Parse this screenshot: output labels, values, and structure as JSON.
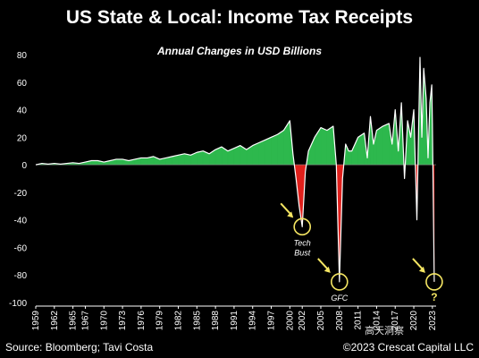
{
  "title": "US State & Local: Income Tax Receipts",
  "subtitle": "Annual Changes in USD Billions",
  "footer": {
    "source": "Source: Bloomberg; Tavi Costa",
    "copyright": "©2023 Crescat Capital LLC",
    "watermark": "高天洞察"
  },
  "colors": {
    "positive_fill": "#2db84d",
    "negative_fill": "#e0201c",
    "line": "#ffffff",
    "circle": "#f5e663",
    "arrow": "#f5e663"
  },
  "chart_data": {
    "type": "area",
    "title": "US State & Local: Income Tax Receipts",
    "subtitle": "Annual Changes in USD Billions",
    "xlabel": "",
    "ylabel": "",
    "ylim": [
      -100,
      80
    ],
    "xlim": [
      1959,
      2023.6
    ],
    "grid": false,
    "yticks": [
      80,
      60,
      40,
      20,
      0,
      -20,
      -40,
      -60,
      -80,
      -100
    ],
    "xticks": [
      "1959",
      "1962",
      "1965",
      "1967",
      "1970",
      "1973",
      "1976",
      "1979",
      "1982",
      "1985",
      "1988",
      "1991",
      "1994",
      "1997",
      "2000",
      "2002",
      "2005",
      "2008",
      "2011",
      "2014",
      "2017",
      "2020",
      "2023"
    ],
    "series": [
      {
        "x": [
          1959,
          1960,
          1961,
          1962,
          1963,
          1964,
          1965,
          1966,
          1967,
          1968,
          1969,
          1970,
          1971,
          1972,
          1973,
          1974,
          1975,
          1976,
          1977,
          1978,
          1979,
          1980,
          1981,
          1982,
          1983,
          1984,
          1985,
          1986,
          1987,
          1988,
          1989,
          1990,
          1991,
          1992,
          1993,
          1994,
          1995,
          1996,
          1997,
          1998,
          1999,
          2000,
          2000.5,
          2001,
          2001.5,
          2002,
          2002.5,
          2003,
          2004,
          2005,
          2006,
          2007,
          2007.5,
          2008,
          2008.5,
          2009,
          2009.5,
          2010,
          2011,
          2012,
          2012.5,
          2013,
          2013.5,
          2014,
          2015,
          2016,
          2016.5,
          2017,
          2017.5,
          2018,
          2018.5,
          2019,
          2019.5,
          2020,
          2020.5,
          2021,
          2021.3,
          2021.6,
          2022,
          2022.3,
          2022.6,
          2022.9,
          2023,
          2023.3
        ],
        "values": [
          0,
          1,
          0.5,
          1,
          0.5,
          1,
          1.5,
          1,
          2,
          3,
          3,
          2,
          3,
          4,
          4,
          3,
          4,
          5,
          5,
          6,
          4,
          5,
          6,
          7,
          8,
          7,
          9,
          10,
          8,
          11,
          13,
          10,
          12,
          14,
          11,
          14,
          16,
          18,
          20,
          22,
          25,
          32,
          8,
          -10,
          -30,
          -45,
          -5,
          10,
          20,
          27,
          25,
          28,
          0,
          -85,
          -10,
          15,
          10,
          10,
          20,
          23,
          5,
          35,
          15,
          25,
          28,
          30,
          15,
          40,
          10,
          45,
          -10,
          32,
          20,
          40,
          -40,
          78,
          20,
          70,
          48,
          5,
          45,
          58,
          30,
          -85
        ]
      }
    ],
    "annotations": [
      {
        "label": "Tech\nBust",
        "x": 2002,
        "y": -45
      },
      {
        "label": "GFC",
        "x": 2008,
        "y": -85
      },
      {
        "label": "?",
        "x": 2023.3,
        "y": -85
      }
    ]
  }
}
